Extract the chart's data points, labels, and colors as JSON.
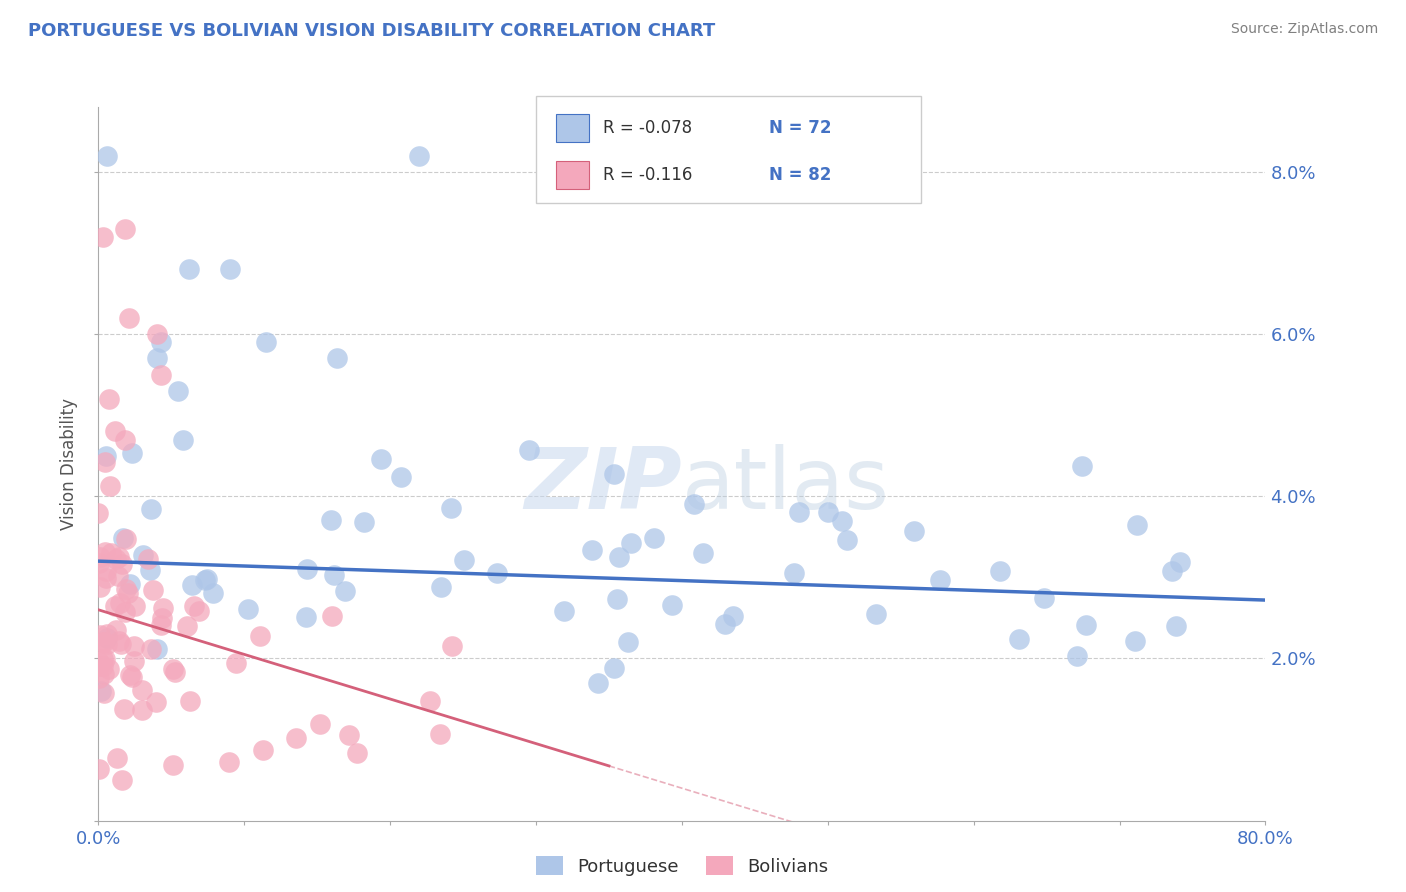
{
  "title": "PORTUGUESE VS BOLIVIAN VISION DISABILITY CORRELATION CHART",
  "source": "Source: ZipAtlas.com",
  "ylabel": "Vision Disability",
  "xlim": [
    0.0,
    0.8
  ],
  "ylim": [
    0.0,
    0.088
  ],
  "xticks": [
    0.0,
    0.1,
    0.2,
    0.3,
    0.4,
    0.5,
    0.6,
    0.7,
    0.8
  ],
  "xtick_labels": [
    "0.0%",
    "",
    "",
    "",
    "",
    "",
    "",
    "",
    "80.0%"
  ],
  "yticks": [
    0.0,
    0.02,
    0.04,
    0.06,
    0.08
  ],
  "ytick_labels": [
    "",
    "2.0%",
    "4.0%",
    "6.0%",
    "8.0%"
  ],
  "portuguese_color": "#aec6e8",
  "bolivian_color": "#f4a8bc",
  "portuguese_line_color": "#4472c4",
  "bolivian_line_color": "#d4607a",
  "r_portuguese": -0.078,
  "n_portuguese": 72,
  "r_bolivian": -0.116,
  "n_bolivian": 82,
  "portuguese_intercept": 0.032,
  "portuguese_slope": -0.006,
  "bolivian_intercept": 0.026,
  "bolivian_slope": -0.055,
  "watermark_zip": "ZIP",
  "watermark_atlas": "atlas",
  "legend_label_portuguese": "Portuguese",
  "legend_label_bolivian": "Bolivians",
  "background_color": "#ffffff",
  "grid_color": "#cccccc",
  "title_color": "#4472c4",
  "source_color": "#808080",
  "tick_label_color": "#4472c4",
  "r_label_color": "#333333",
  "n_label_color": "#4472c4"
}
